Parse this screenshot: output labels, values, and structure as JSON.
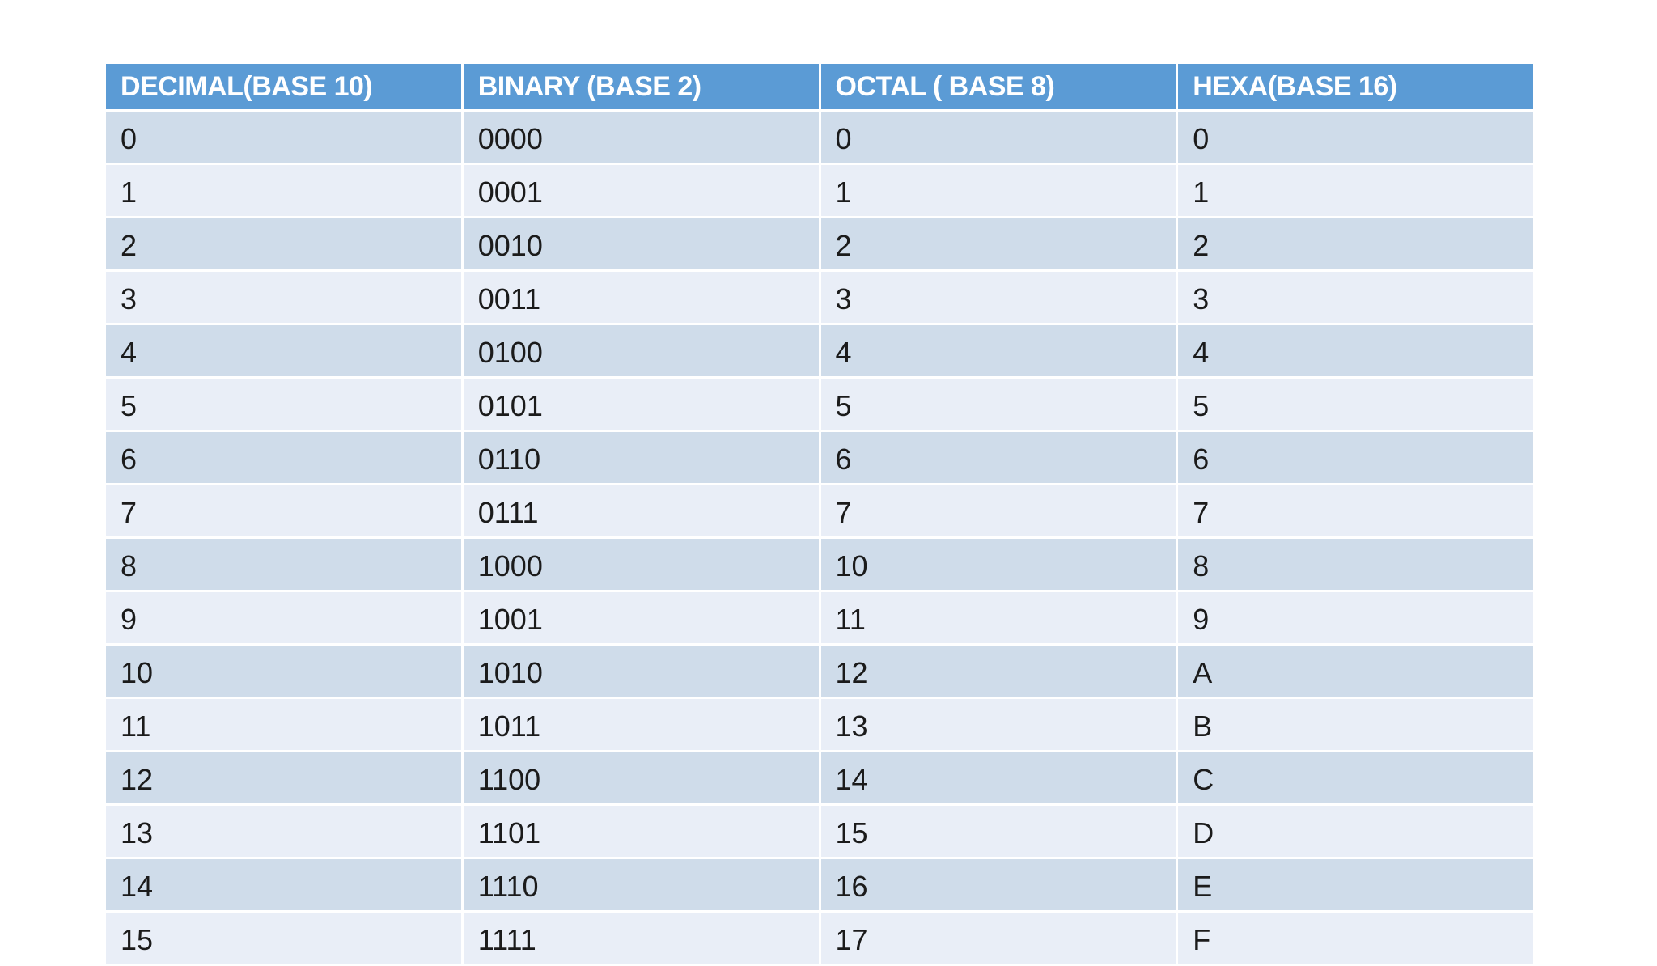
{
  "page": {
    "background_color": "#ffffff"
  },
  "table": {
    "name": "number-system-conversion-table",
    "columns": [
      {
        "id": "decimal",
        "label": "DECIMAL(BASE 10)"
      },
      {
        "id": "binary",
        "label": "BINARY (BASE 2)"
      },
      {
        "id": "octal",
        "label": "OCTAL ( BASE 8)"
      },
      {
        "id": "hexa",
        "label": "HEXA(BASE 16)"
      }
    ],
    "rows": [
      [
        "0",
        "0000",
        "0",
        "0"
      ],
      [
        "1",
        "0001",
        "1",
        "1"
      ],
      [
        "2",
        "0010",
        "2",
        "2"
      ],
      [
        "3",
        "0011",
        "3",
        "3"
      ],
      [
        "4",
        "0100",
        "4",
        "4"
      ],
      [
        "5",
        "0101",
        "5",
        "5"
      ],
      [
        "6",
        "0110",
        "6",
        "6"
      ],
      [
        "7",
        "0111",
        "7",
        "7"
      ],
      [
        "8",
        "1000",
        "10",
        "8"
      ],
      [
        "9",
        "1001",
        "11",
        "9"
      ],
      [
        "10",
        "1010",
        "12",
        "A"
      ],
      [
        "11",
        "1011",
        "13",
        "B"
      ],
      [
        "12",
        "1100",
        "14",
        "C"
      ],
      [
        "13",
        "1101",
        "15",
        "D"
      ],
      [
        "14",
        "1110",
        "16",
        "E"
      ],
      [
        "15",
        "1111",
        "17",
        "F"
      ]
    ],
    "colors": {
      "header_background": "#5b9bd5",
      "header_text": "#ffffff",
      "row_band_dark": "#cfdcea",
      "row_band_light": "#e9eef7",
      "cell_text": "#1b1b1b",
      "grid_line": "#ffffff"
    }
  }
}
